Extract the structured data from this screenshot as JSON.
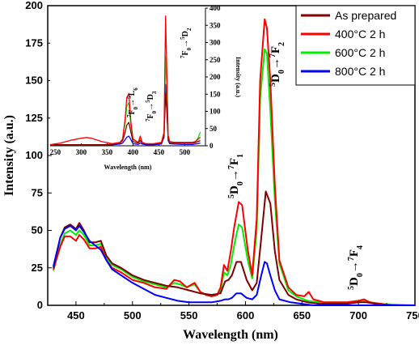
{
  "chart_data": [
    {
      "type": "line",
      "xlabel": "Wavelength (nm)",
      "ylabel": "Intensity (a.u.)",
      "xlim": [
        425,
        750
      ],
      "ylim": [
        0,
        200
      ],
      "xticks": [
        "450",
        "500",
        "550",
        "600",
        "650",
        "700",
        "750"
      ],
      "yticks": [
        "0",
        "25",
        "50",
        "75",
        "100",
        "125",
        "150",
        "175",
        "200"
      ],
      "legend": "top-right",
      "series": [
        {
          "name": "As prepared",
          "color": "#800000",
          "x": [
            430,
            436,
            440,
            445,
            450,
            453,
            457,
            462,
            467,
            472,
            477,
            482,
            490,
            500,
            510,
            520,
            530,
            540,
            550,
            560,
            570,
            578,
            582,
            585,
            588,
            592,
            596,
            601,
            606,
            610,
            614,
            618,
            622,
            626,
            630,
            638,
            645,
            655,
            665,
            680,
            690,
            700,
            707,
            715,
            730,
            750
          ],
          "y": [
            25,
            45,
            52,
            54,
            51,
            55,
            50,
            42,
            42,
            43,
            33,
            28,
            25,
            20,
            17,
            15,
            13,
            12,
            10,
            8,
            7,
            8,
            16,
            17,
            20,
            29,
            29,
            17,
            10,
            15,
            45,
            76,
            68,
            36,
            17,
            7,
            4,
            2,
            1,
            1,
            1,
            2,
            2,
            1,
            0,
            0
          ]
        },
        {
          "name": "400°C 2 h",
          "color": "#ff0000",
          "x": [
            430,
            436,
            440,
            445,
            450,
            453,
            457,
            462,
            467,
            472,
            477,
            482,
            490,
            500,
            510,
            520,
            530,
            537,
            542,
            548,
            555,
            560,
            565,
            570,
            575,
            578,
            581,
            584,
            587,
            590,
            594,
            597,
            602,
            606,
            610,
            613,
            617,
            619,
            622,
            626,
            630,
            638,
            645,
            652,
            656,
            660,
            670,
            690,
            700,
            705,
            710,
            730,
            750
          ],
          "y": [
            24,
            39,
            46,
            46,
            43,
            47,
            44,
            38,
            38,
            39,
            30,
            25,
            22,
            17,
            15,
            12,
            11,
            17,
            16,
            12,
            15,
            9,
            7,
            6,
            7,
            12,
            27,
            23,
            36,
            52,
            69,
            67,
            37,
            20,
            58,
            150,
            191,
            185,
            150,
            80,
            30,
            12,
            7,
            6,
            9,
            4,
            2,
            2,
            3,
            4,
            2,
            0,
            0
          ]
        },
        {
          "name": "600°C 2 h",
          "color": "#00ee00",
          "x": [
            430,
            436,
            440,
            445,
            450,
            453,
            457,
            462,
            467,
            472,
            477,
            482,
            490,
            500,
            510,
            520,
            530,
            537,
            542,
            548,
            555,
            560,
            565,
            570,
            575,
            578,
            581,
            584,
            587,
            590,
            594,
            597,
            602,
            606,
            610,
            613,
            617,
            619,
            622,
            626,
            630,
            638,
            645,
            655,
            665,
            690,
            700,
            707,
            715,
            750
          ],
          "y": [
            23,
            40,
            48,
            50,
            47,
            50,
            47,
            40,
            40,
            41,
            31,
            27,
            24,
            19,
            16,
            14,
            12,
            15,
            14,
            12,
            14,
            9,
            7,
            6,
            7,
            10,
            22,
            20,
            27,
            40,
            54,
            52,
            30,
            18,
            50,
            138,
            171,
            168,
            130,
            70,
            28,
            10,
            6,
            3,
            2,
            2,
            3,
            3,
            1,
            0
          ]
        },
        {
          "name": "800°C 2 h",
          "color": "#0000ff",
          "x": [
            430,
            436,
            440,
            445,
            450,
            453,
            457,
            462,
            467,
            472,
            477,
            482,
            490,
            500,
            510,
            520,
            530,
            540,
            550,
            560,
            570,
            578,
            582,
            585,
            588,
            592,
            596,
            601,
            606,
            610,
            614,
            617,
            619,
            622,
            626,
            630,
            640,
            650,
            660,
            700,
            750
          ],
          "y": [
            26,
            45,
            51,
            53,
            50,
            53,
            49,
            43,
            40,
            37,
            30,
            24,
            20,
            15,
            11,
            7,
            5,
            3,
            2,
            2,
            2,
            3,
            4,
            4,
            5,
            8,
            8,
            5,
            4,
            7,
            20,
            29,
            28,
            20,
            10,
            4,
            2,
            1,
            0,
            0,
            0
          ]
        }
      ],
      "annotations": [
        {
          "id": "f2",
          "prefix": "5",
          "base1": "D",
          "sub1": "0",
          "arrow": "→",
          "prefix2": "7",
          "base2": "F",
          "sub2": "2"
        },
        {
          "id": "f1",
          "prefix": "5",
          "base1": "D",
          "sub1": "0",
          "arrow": "→",
          "prefix2": "7",
          "base2": "F",
          "sub2": "1"
        },
        {
          "id": "f4",
          "prefix": "5",
          "base1": "D",
          "sub1": "0",
          "arrow": "→",
          "prefix2": "7",
          "base2": "F",
          "sub2": "4"
        }
      ]
    },
    {
      "type": "line",
      "xlabel": "Wavelength (nm)",
      "ylabel": "Intensity (a.u.)",
      "xlim": [
        240,
        540
      ],
      "ylim": [
        0,
        400
      ],
      "xticks": [
        "250",
        "300",
        "350",
        "400",
        "450",
        "500"
      ],
      "yticks": [
        "0",
        "50",
        "100",
        "150",
        "200",
        "250",
        "300",
        "350",
        "400"
      ],
      "series": [
        {
          "name": "As prepared",
          "color": "#800000",
          "x": [
            240,
            260,
            280,
            300,
            320,
            340,
            360,
            375,
            380,
            385,
            388,
            392,
            396,
            400,
            410,
            414,
            418,
            425,
            440,
            455,
            460,
            463,
            465,
            468,
            471,
            480,
            500,
            515,
            520,
            525,
            530
          ],
          "y": [
            3,
            3,
            3,
            3,
            3,
            3,
            4,
            8,
            15,
            40,
            60,
            68,
            40,
            12,
            8,
            15,
            8,
            5,
            5,
            8,
            30,
            150,
            110,
            22,
            10,
            8,
            8,
            8,
            9,
            12,
            15
          ]
        },
        {
          "name": "400°C 2 h",
          "color": "#ff0000",
          "x": [
            240,
            260,
            280,
            300,
            310,
            320,
            340,
            360,
            375,
            380,
            385,
            388,
            392,
            396,
            400,
            410,
            414,
            418,
            425,
            440,
            455,
            460,
            463,
            465,
            468,
            471,
            480,
            500,
            515,
            520,
            525,
            530
          ],
          "y": [
            3,
            8,
            16,
            22,
            24,
            22,
            12,
            6,
            10,
            20,
            80,
            140,
            152,
            70,
            20,
            10,
            28,
            10,
            6,
            6,
            10,
            40,
            377,
            240,
            30,
            12,
            10,
            10,
            10,
            12,
            18,
            25
          ]
        },
        {
          "name": "600°C 2 h",
          "color": "#00ee00",
          "x": [
            240,
            260,
            280,
            300,
            320,
            340,
            360,
            375,
            380,
            385,
            388,
            392,
            396,
            400,
            410,
            414,
            418,
            425,
            440,
            455,
            460,
            463,
            465,
            468,
            471,
            480,
            500,
            515,
            520,
            525,
            530
          ],
          "y": [
            3,
            3,
            3,
            3,
            3,
            3,
            4,
            9,
            18,
            70,
            115,
            125,
            60,
            18,
            10,
            20,
            10,
            5,
            5,
            9,
            35,
            260,
            190,
            25,
            12,
            10,
            10,
            10,
            12,
            20,
            40
          ]
        },
        {
          "name": "800°C 2 h",
          "color": "#0000ff",
          "x": [
            240,
            260,
            280,
            300,
            320,
            340,
            360,
            375,
            380,
            385,
            388,
            392,
            396,
            400,
            410,
            414,
            418,
            425,
            440,
            455,
            460,
            463,
            465,
            468,
            471,
            480,
            500,
            515,
            520,
            525,
            530
          ],
          "y": [
            2,
            2,
            2,
            2,
            2,
            2,
            3,
            5,
            8,
            18,
            25,
            28,
            18,
            6,
            4,
            8,
            5,
            3,
            3,
            5,
            25,
            178,
            130,
            15,
            6,
            5,
            4,
            4,
            5,
            6,
            8
          ]
        }
      ],
      "annotations": [
        {
          "id": "l6",
          "prefix": "7",
          "base1": "F",
          "sub1": "0",
          "arrow": "→",
          "prefix2": "5",
          "base2": "L",
          "sub2": "6"
        },
        {
          "id": "d3",
          "prefix": "7",
          "base1": "F",
          "sub1": "0",
          "arrow": "→",
          "prefix2": "5",
          "base2": "D",
          "sub2": "3"
        },
        {
          "id": "d2",
          "prefix": "7",
          "base1": "F",
          "sub1": "0",
          "arrow": "→",
          "prefix2": "5",
          "base2": "D",
          "sub2": "2"
        }
      ]
    }
  ]
}
